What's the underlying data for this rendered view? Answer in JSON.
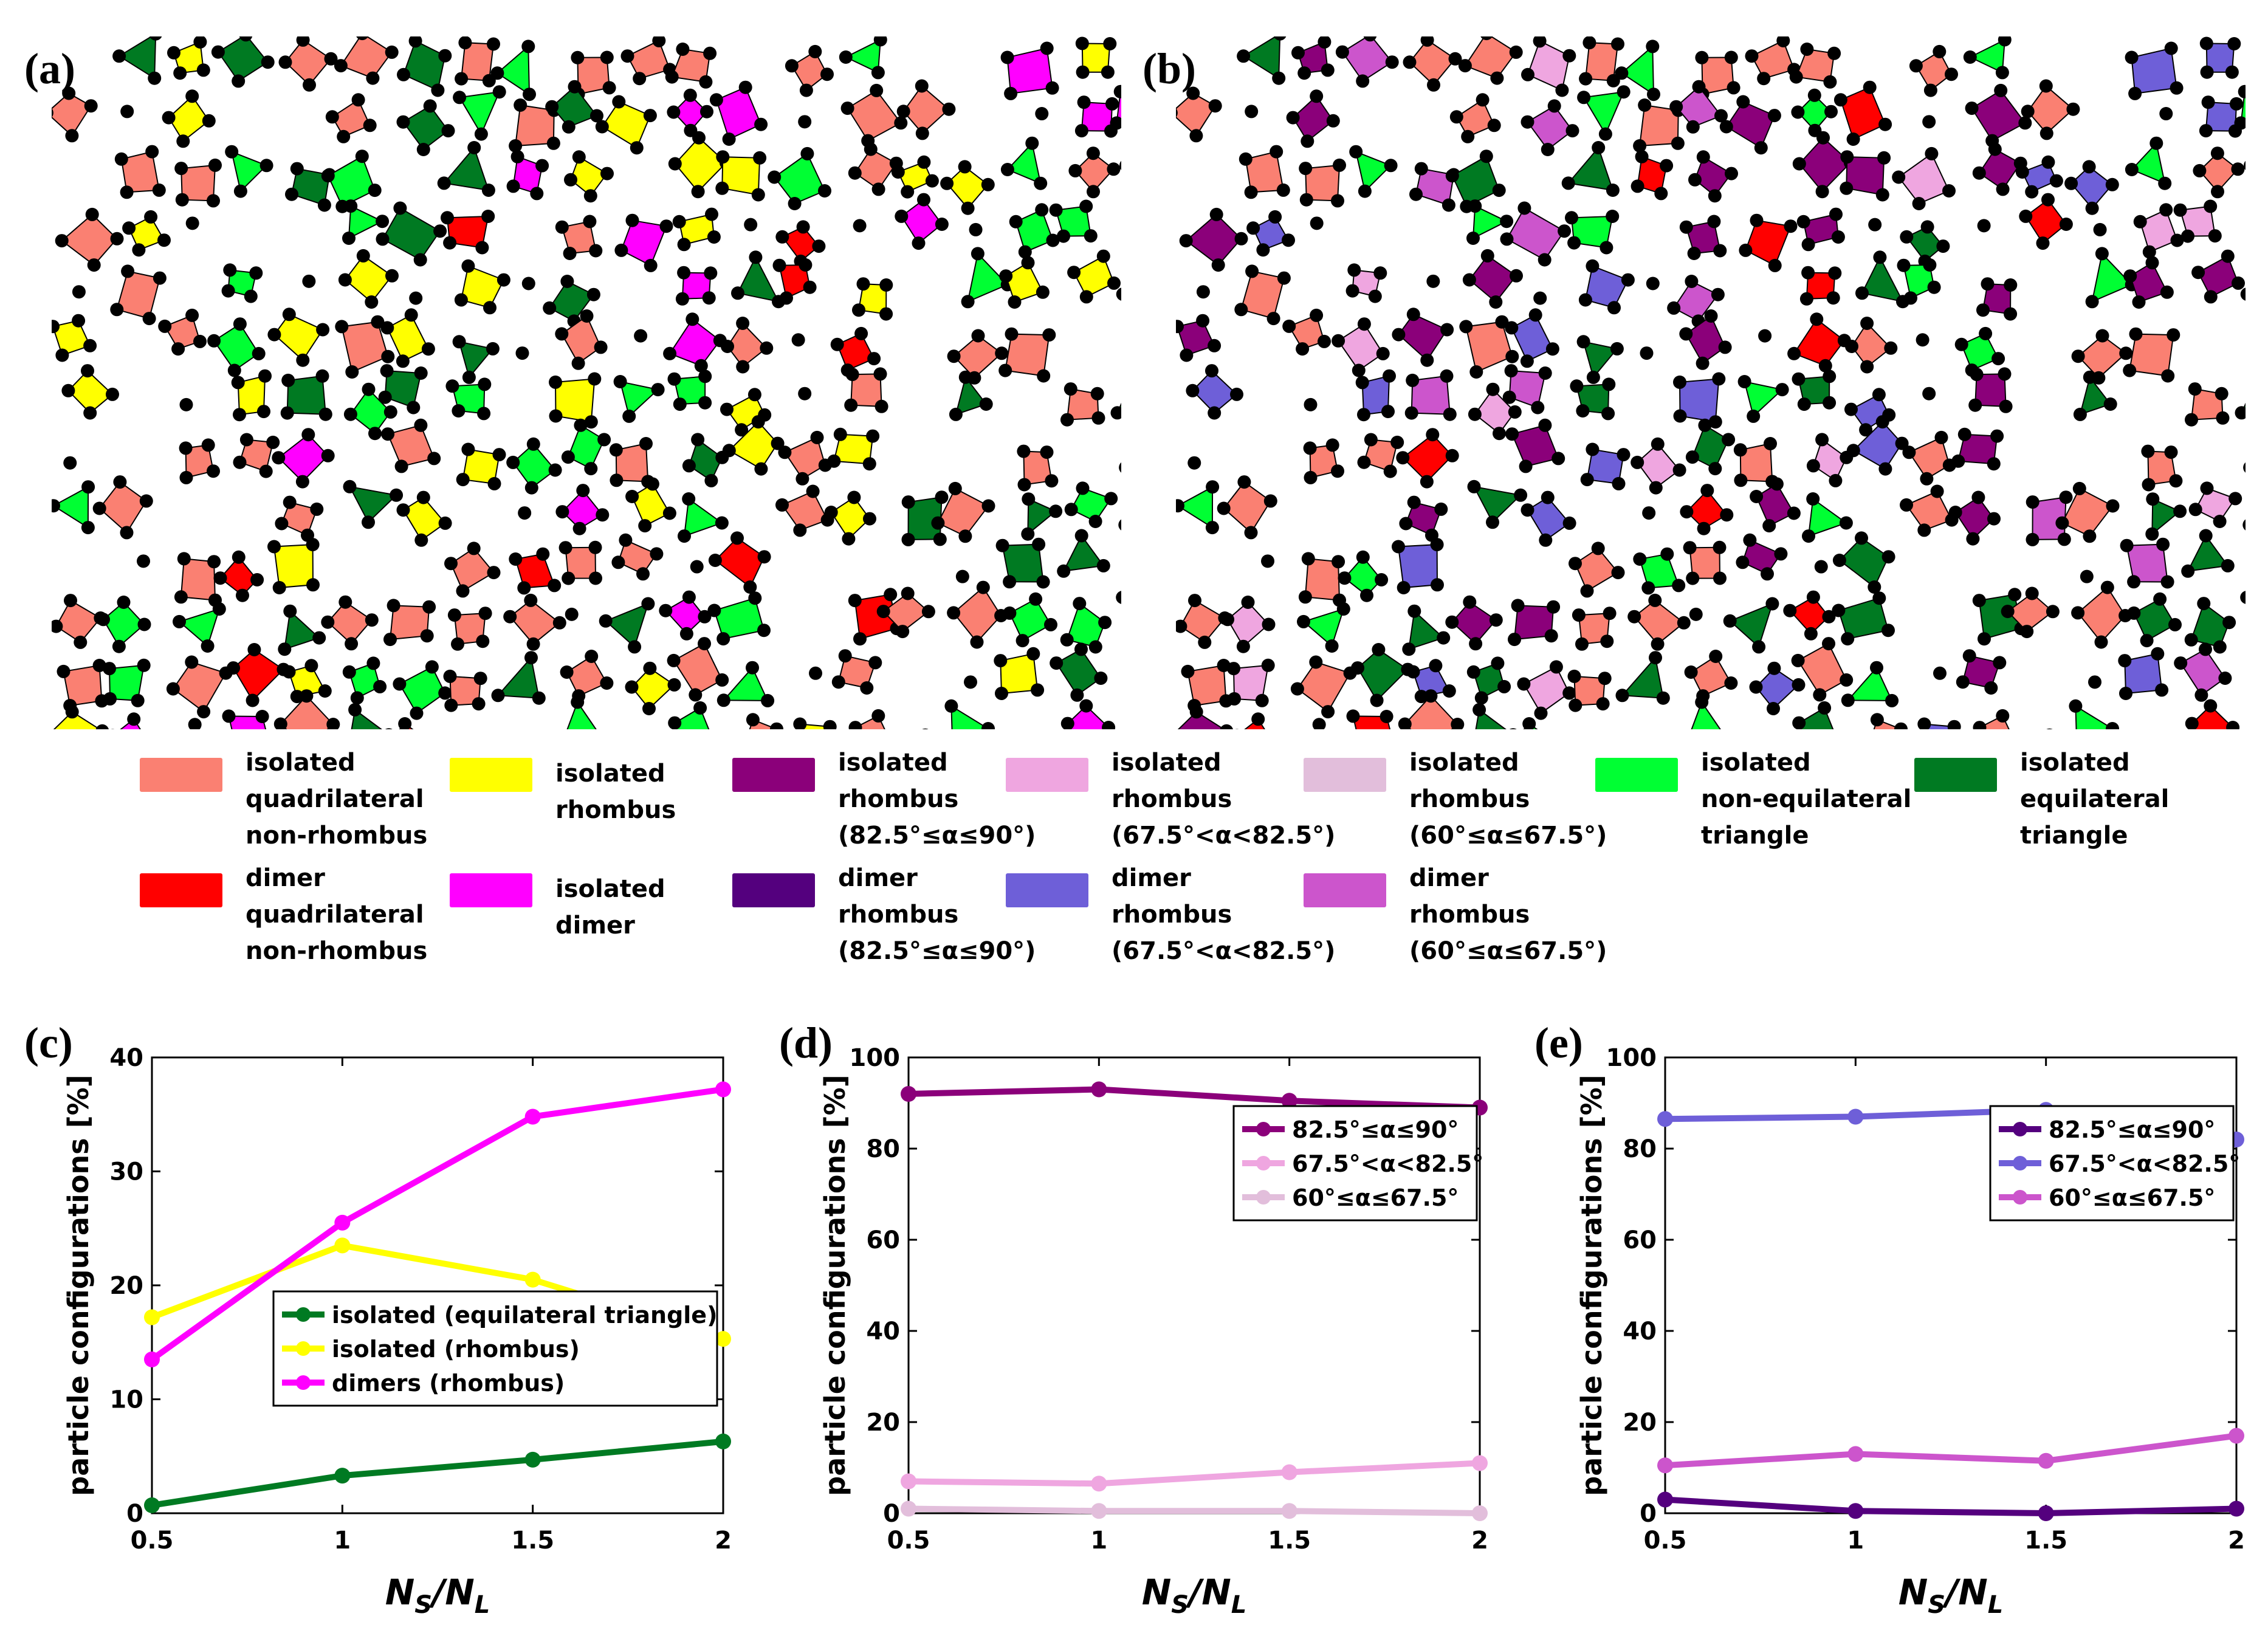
{
  "panels": {
    "a": "(a)",
    "b": "(b)",
    "c": "(c)",
    "d": "(d)",
    "e": "(e)"
  },
  "colors": {
    "salmon": "#FA8072",
    "yellow": "#FFFF00",
    "magenta": "#FF00FF",
    "red": "#FF0000",
    "green": "#00FF33",
    "darkgreen": "#007A22",
    "purple": "#8B007A",
    "darkpurple": "#54007E",
    "pink": "#EFA6E0",
    "lightpink": "#E2BEDB",
    "blue": "#6E5FD8",
    "orchid": "#CC55CC"
  },
  "legend": [
    {
      "text": "isolated\nquadrilateral\nnon-rhombus",
      "color": "#FA8072"
    },
    {
      "text": "isolated\nrhombus",
      "color": "#FFFF00"
    },
    {
      "text": "isolated\nrhombus\n(82.5°≤α≤90°)",
      "color": "#8B007A"
    },
    {
      "text": "isolated\nrhombus\n(67.5°<α<82.5°)",
      "color": "#EFA6E0"
    },
    {
      "text": "isolated\nrhombus\n(60°≤α≤67.5°)",
      "color": "#E2BEDB"
    },
    {
      "text": "isolated\nnon-equilateral\ntriangle",
      "color": "#00FF33"
    },
    {
      "text": "isolated\nequilateral\ntriangle",
      "color": "#007A22"
    },
    {
      "text": "dimer\nquadrilateral\nnon-rhombus",
      "color": "#FF0000"
    },
    {
      "text": "isolated\ndimer",
      "color": "#FF00FF"
    },
    {
      "text": "dimer\nrhombus\n(82.5°≤α≤90°)",
      "color": "#54007E"
    },
    {
      "text": "dimer\nrhombus\n(67.5°<α<82.5°)",
      "color": "#6E5FD8"
    },
    {
      "text": "dimer\nrhombus\n(60°≤α≤67.5°)",
      "color": "#CC55CC"
    }
  ],
  "chart_data": [
    {
      "type": "line",
      "panel": "c",
      "x": [
        0.5,
        1,
        1.5,
        2
      ],
      "xticks": [
        "0.5",
        "1",
        "1.5",
        "2"
      ],
      "xlim": [
        0.5,
        2
      ],
      "ylim": [
        0,
        40
      ],
      "yticks": [
        "0",
        "10",
        "20",
        "30",
        "40"
      ],
      "xlabel": "N_S/N_L",
      "ylabel": "particle configurations [%]",
      "legend_position": "lower-right",
      "series": [
        {
          "name": "isolated (equilateral triangle)",
          "color": "#007A22",
          "values": [
            0.7,
            3.3,
            4.7,
            6.3
          ]
        },
        {
          "name": "isolated (rhombus)",
          "color": "#FFFF00",
          "values": [
            17.2,
            23.5,
            20.5,
            15.3
          ]
        },
        {
          "name": "dimers (rhombus)",
          "color": "#FF00FF",
          "values": [
            13.5,
            25.5,
            34.8,
            37.2
          ]
        }
      ]
    },
    {
      "type": "line",
      "panel": "d",
      "x": [
        0.5,
        1,
        1.5,
        2
      ],
      "xticks": [
        "0.5",
        "1",
        "1.5",
        "2"
      ],
      "xlim": [
        0.5,
        2
      ],
      "ylim": [
        0,
        100
      ],
      "yticks": [
        "0",
        "20",
        "40",
        "60",
        "80",
        "100"
      ],
      "xlabel": "N_S/N_L",
      "ylabel": "particle configurations [%]",
      "legend_position": "upper-right",
      "series": [
        {
          "name": "82.5°≤α≤90°",
          "color": "#8B007A",
          "values": [
            92,
            93,
            90.5,
            89
          ]
        },
        {
          "name": "67.5°<α<82.5°",
          "color": "#EFA6E0",
          "values": [
            7,
            6.5,
            9,
            11
          ]
        },
        {
          "name": "60°≤α≤67.5°",
          "color": "#E2BEDB",
          "values": [
            1,
            0.5,
            0.5,
            0
          ]
        }
      ]
    },
    {
      "type": "line",
      "panel": "e",
      "x": [
        0.5,
        1,
        1.5,
        2
      ],
      "xticks": [
        "0.5",
        "1",
        "1.5",
        "2"
      ],
      "xlim": [
        0.5,
        2
      ],
      "ylim": [
        0,
        100
      ],
      "yticks": [
        "0",
        "20",
        "40",
        "60",
        "80",
        "100"
      ],
      "xlabel": "N_S/N_L",
      "ylabel": "particle configurations [%]",
      "legend_position": "upper-right",
      "series": [
        {
          "name": "82.5°≤α≤90°",
          "color": "#54007E",
          "values": [
            3,
            0.5,
            0,
            1
          ]
        },
        {
          "name": "67.5°<α<82.5°",
          "color": "#6E5FD8",
          "values": [
            86.5,
            87,
            88.5,
            82
          ]
        },
        {
          "name": "60°≤α≤67.5°",
          "color": "#CC55CC",
          "values": [
            10.5,
            13,
            11.5,
            17
          ]
        }
      ]
    }
  ]
}
